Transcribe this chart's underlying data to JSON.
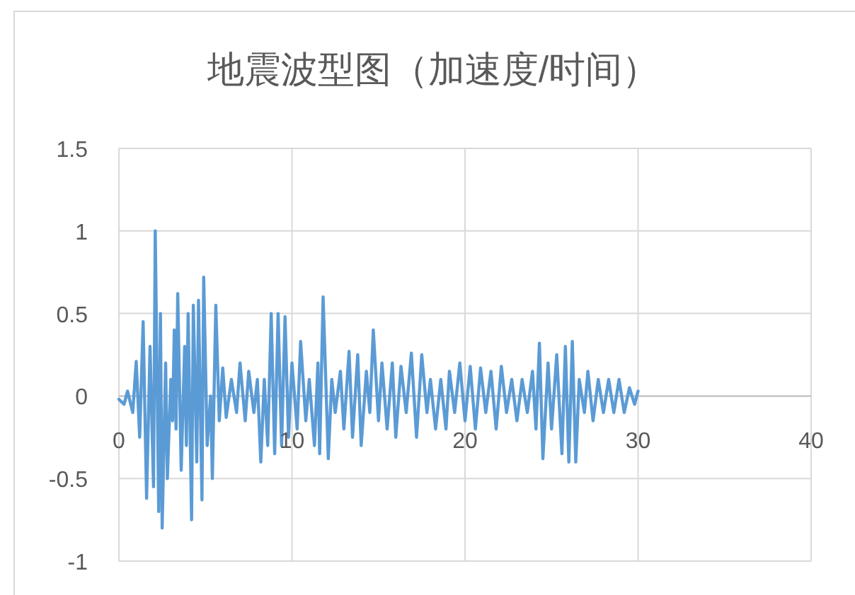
{
  "chart_data": {
    "type": "line",
    "title": "地震波型图（加速度/时间）",
    "x": [
      0,
      0.3,
      0.5,
      0.8,
      1.0,
      1.2,
      1.4,
      1.6,
      1.8,
      2.0,
      2.1,
      2.3,
      2.4,
      2.5,
      2.7,
      2.8,
      3.0,
      3.1,
      3.2,
      3.3,
      3.4,
      3.6,
      3.8,
      3.9,
      4.0,
      4.2,
      4.3,
      4.5,
      4.6,
      4.8,
      4.9,
      5.1,
      5.3,
      5.4,
      5.6,
      5.8,
      6.0,
      6.2,
      6.5,
      6.8,
      7.0,
      7.3,
      7.5,
      7.8,
      8.0,
      8.2,
      8.4,
      8.6,
      8.8,
      9.0,
      9.2,
      9.4,
      9.6,
      9.8,
      10.0,
      10.3,
      10.5,
      10.8,
      11.0,
      11.3,
      11.5,
      11.6,
      11.8,
      12.1,
      12.3,
      12.5,
      12.8,
      13.0,
      13.3,
      13.5,
      13.8,
      14.0,
      14.3,
      14.5,
      14.7,
      15.0,
      15.2,
      15.5,
      15.8,
      16.0,
      16.3,
      16.6,
      16.9,
      17.2,
      17.5,
      17.8,
      18.0,
      18.3,
      18.6,
      18.9,
      19.1,
      19.4,
      19.7,
      20.0,
      20.3,
      20.6,
      20.9,
      21.2,
      21.5,
      21.8,
      22.1,
      22.4,
      22.7,
      23.0,
      23.3,
      23.6,
      23.9,
      24.1,
      24.3,
      24.5,
      24.8,
      25.0,
      25.3,
      25.6,
      25.8,
      26.0,
      26.2,
      26.4,
      26.6,
      26.9,
      27.1,
      27.4,
      27.7,
      28.0,
      28.3,
      28.6,
      28.9,
      29.2,
      29.5,
      29.8,
      30.0
    ],
    "series": [
      {
        "color": "#5b9bd5",
        "values": [
          -0.02,
          -0.05,
          0.03,
          -0.1,
          0.21,
          -0.25,
          0.45,
          -0.62,
          0.3,
          -0.55,
          1.0,
          -0.7,
          0.5,
          -0.8,
          0.2,
          -0.5,
          0.1,
          -0.15,
          0.4,
          -0.2,
          0.62,
          -0.45,
          0.3,
          -0.3,
          0.5,
          -0.75,
          0.55,
          -0.4,
          0.58,
          -0.63,
          0.72,
          -0.3,
          0.0,
          -0.5,
          0.55,
          -0.15,
          0.17,
          -0.13,
          0.1,
          -0.1,
          0.2,
          -0.15,
          0.15,
          -0.1,
          0.1,
          -0.4,
          0.1,
          -0.3,
          0.5,
          -0.35,
          0.5,
          -0.3,
          0.48,
          -0.25,
          0.2,
          -0.2,
          0.33,
          -0.15,
          0.1,
          -0.3,
          0.2,
          -0.35,
          0.6,
          -0.38,
          0.1,
          -0.1,
          0.15,
          -0.2,
          0.27,
          -0.25,
          0.25,
          -0.3,
          0.15,
          -0.1,
          0.4,
          -0.15,
          0.2,
          -0.2,
          0.2,
          -0.25,
          0.18,
          -0.1,
          0.26,
          -0.25,
          0.25,
          -0.1,
          0.1,
          -0.2,
          0.1,
          -0.2,
          0.15,
          -0.1,
          0.2,
          -0.15,
          0.18,
          -0.2,
          0.17,
          -0.1,
          0.15,
          -0.2,
          0.18,
          -0.1,
          0.1,
          -0.15,
          0.1,
          -0.1,
          0.15,
          -0.2,
          0.32,
          -0.38,
          0.2,
          -0.2,
          0.25,
          -0.35,
          0.3,
          -0.4,
          0.33,
          -0.4,
          0.1,
          -0.1,
          0.15,
          -0.15,
          0.1,
          -0.1,
          0.1,
          -0.1,
          0.1,
          -0.1,
          0.05,
          -0.05,
          0.03
        ]
      }
    ],
    "xlim": [
      0,
      40
    ],
    "xticks": [
      0,
      10,
      20,
      30,
      40
    ],
    "ylim": [
      -1,
      1.5
    ],
    "yticks": [
      -1,
      -0.5,
      0,
      0.5,
      1,
      1.5
    ],
    "grid": true
  }
}
